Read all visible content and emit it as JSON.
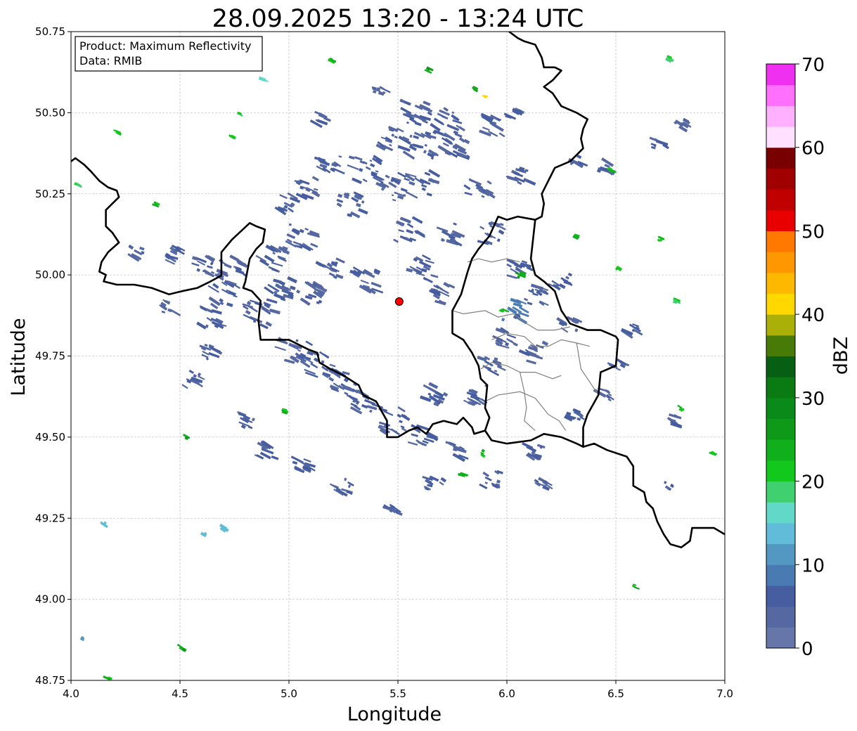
{
  "chart_data": {
    "type": "heatmap",
    "title": "28.09.2025 13:20 - 13:24 UTC",
    "xlabel": "Longitude",
    "ylabel": "Latitude",
    "xlim": [
      4.0,
      7.0
    ],
    "ylim": [
      48.75,
      50.75
    ],
    "xticks": [
      "4.0",
      "4.5",
      "5.0",
      "5.5",
      "6.0",
      "6.5",
      "7.0"
    ],
    "yticks": [
      "48.75",
      "49.00",
      "49.25",
      "49.50",
      "49.75",
      "50.00",
      "50.25",
      "50.50",
      "50.75"
    ],
    "grid": true,
    "info_box": {
      "product": "Product: Maximum Reflectivity",
      "data": "Data: RMIB",
      "placement": "top-left"
    },
    "colorbar": {
      "label": "dBZ",
      "range": [
        0,
        70
      ],
      "step": 2.5,
      "ticks": [
        "0",
        "10",
        "20",
        "30",
        "40",
        "50",
        "60",
        "70"
      ],
      "colors": [
        "#6676a8",
        "#5668a2",
        "#465ea0",
        "#4a7ab2",
        "#5298c2",
        "#60bcd8",
        "#62d8c8",
        "#40d070",
        "#12c81c",
        "#10b01c",
        "#0e9a18",
        "#0a8a18",
        "#0a7a12",
        "#065f12",
        "#487a08",
        "#aab008",
        "#ffd800",
        "#ffb800",
        "#ff9800",
        "#ff7800",
        "#e80000",
        "#c00000",
        "#a00000",
        "#780000",
        "#ffe0ff",
        "#ffb0ff",
        "#ff70ff",
        "#f030f0"
      ]
    },
    "radar_site": {
      "lon": 5.506,
      "lat": 49.918,
      "color": "#ff0000"
    },
    "echo_clusters_note_fields": [
      "lon",
      "lat",
      "dBZ",
      "spread_deg"
    ],
    "echo_clusters": [
      [
        5.58,
        50.5,
        5,
        0.07
      ],
      [
        5.74,
        50.47,
        5,
        0.07
      ],
      [
        5.93,
        50.46,
        5,
        0.05
      ],
      [
        6.03,
        50.5,
        5,
        0.03
      ],
      [
        5.48,
        50.42,
        5,
        0.06
      ],
      [
        5.61,
        50.4,
        5,
        0.07
      ],
      [
        5.77,
        50.4,
        5,
        0.06
      ],
      [
        5.35,
        50.33,
        5,
        0.07
      ],
      [
        5.48,
        50.27,
        5,
        0.07
      ],
      [
        5.61,
        50.28,
        5,
        0.06
      ],
      [
        5.87,
        50.26,
        5,
        0.06
      ],
      [
        6.06,
        50.3,
        5,
        0.05
      ],
      [
        5.19,
        50.35,
        5,
        0.05
      ],
      [
        5.09,
        50.27,
        5,
        0.05
      ],
      [
        4.99,
        50.22,
        5,
        0.04
      ],
      [
        5.28,
        50.22,
        5,
        0.06
      ],
      [
        5.55,
        50.14,
        5,
        0.06
      ],
      [
        5.74,
        50.13,
        5,
        0.05
      ],
      [
        5.93,
        50.13,
        5,
        0.05
      ],
      [
        5.06,
        50.12,
        5,
        0.06
      ],
      [
        4.93,
        50.05,
        5,
        0.06
      ],
      [
        4.74,
        50.02,
        5,
        0.06
      ],
      [
        4.61,
        50.03,
        5,
        0.05
      ],
      [
        4.48,
        50.06,
        5,
        0.04
      ],
      [
        4.71,
        49.94,
        5,
        0.06
      ],
      [
        4.64,
        49.87,
        5,
        0.05
      ],
      [
        4.87,
        49.88,
        5,
        0.07
      ],
      [
        4.96,
        49.96,
        5,
        0.06
      ],
      [
        5.09,
        49.94,
        5,
        0.06
      ],
      [
        5.19,
        50.02,
        5,
        0.05
      ],
      [
        5.35,
        49.98,
        5,
        0.06
      ],
      [
        5.61,
        50.02,
        5,
        0.06
      ],
      [
        5.71,
        49.94,
        5,
        0.05
      ],
      [
        5.03,
        49.76,
        5,
        0.07
      ],
      [
        5.16,
        49.72,
        5,
        0.07
      ],
      [
        5.25,
        49.67,
        5,
        0.06
      ],
      [
        5.35,
        49.61,
        5,
        0.06
      ],
      [
        5.48,
        49.55,
        5,
        0.06
      ],
      [
        5.61,
        49.5,
        5,
        0.05
      ],
      [
        5.77,
        49.46,
        5,
        0.04
      ],
      [
        5.67,
        49.63,
        5,
        0.05
      ],
      [
        5.87,
        49.63,
        5,
        0.05
      ],
      [
        5.93,
        49.72,
        5,
        0.05
      ],
      [
        6.0,
        49.81,
        5,
        0.05
      ],
      [
        6.03,
        49.89,
        8,
        0.05
      ],
      [
        6.06,
        50.02,
        5,
        0.05
      ],
      [
        6.13,
        49.94,
        5,
        0.05
      ],
      [
        6.25,
        49.98,
        5,
        0.04
      ],
      [
        6.29,
        49.85,
        5,
        0.04
      ],
      [
        6.13,
        49.76,
        5,
        0.05
      ],
      [
        4.56,
        49.68,
        5,
        0.04
      ],
      [
        4.64,
        49.76,
        5,
        0.04
      ],
      [
        4.8,
        49.55,
        5,
        0.04
      ],
      [
        4.9,
        49.46,
        5,
        0.04
      ],
      [
        5.06,
        49.42,
        5,
        0.04
      ],
      [
        5.25,
        49.35,
        5,
        0.04
      ],
      [
        5.48,
        49.27,
        5,
        0.03
      ],
      [
        5.67,
        49.35,
        5,
        0.04
      ],
      [
        5.93,
        49.37,
        5,
        0.04
      ],
      [
        6.16,
        49.35,
        5,
        0.03
      ],
      [
        6.13,
        49.46,
        5,
        0.04
      ],
      [
        6.32,
        49.57,
        5,
        0.04
      ],
      [
        6.45,
        49.63,
        5,
        0.03
      ],
      [
        6.51,
        49.72,
        5,
        0.03
      ],
      [
        6.58,
        49.83,
        5,
        0.03
      ],
      [
        6.77,
        49.55,
        5,
        0.03
      ],
      [
        6.74,
        49.35,
        5,
        0.02
      ],
      [
        6.8,
        50.46,
        5,
        0.03
      ],
      [
        6.7,
        50.41,
        5,
        0.03
      ],
      [
        6.45,
        50.33,
        5,
        0.03
      ],
      [
        6.32,
        50.35,
        5,
        0.03
      ],
      [
        4.3,
        50.07,
        5,
        0.03
      ],
      [
        4.45,
        49.9,
        5,
        0.03
      ],
      [
        5.42,
        50.56,
        5,
        0.03
      ],
      [
        5.15,
        50.48,
        5,
        0.03
      ],
      [
        4.21,
        50.44,
        22,
        0.01
      ],
      [
        4.39,
        50.22,
        22,
        0.01
      ],
      [
        4.74,
        50.43,
        22,
        0.01
      ],
      [
        4.77,
        50.5,
        20,
        0.01
      ],
      [
        5.2,
        50.66,
        22,
        0.01
      ],
      [
        5.64,
        50.63,
        24,
        0.01
      ],
      [
        5.86,
        50.57,
        24,
        0.01
      ],
      [
        6.74,
        50.67,
        20,
        0.015
      ],
      [
        6.48,
        50.32,
        22,
        0.015
      ],
      [
        6.32,
        50.12,
        22,
        0.01
      ],
      [
        6.51,
        50.02,
        22,
        0.01
      ],
      [
        6.7,
        50.11,
        22,
        0.01
      ],
      [
        6.78,
        49.92,
        20,
        0.01
      ],
      [
        6.06,
        50.0,
        24,
        0.015
      ],
      [
        5.99,
        49.89,
        22,
        0.015
      ],
      [
        4.99,
        49.58,
        22,
        0.01
      ],
      [
        4.53,
        49.5,
        24,
        0.005
      ],
      [
        5.8,
        49.38,
        22,
        0.01
      ],
      [
        5.9,
        49.45,
        22,
        0.015
      ],
      [
        6.59,
        49.04,
        24,
        0.01
      ],
      [
        4.51,
        48.85,
        24,
        0.01
      ],
      [
        4.17,
        48.76,
        22,
        0.01
      ],
      [
        6.8,
        49.59,
        22,
        0.01
      ],
      [
        6.94,
        49.45,
        22,
        0.01
      ],
      [
        4.03,
        50.28,
        20,
        0.01
      ],
      [
        4.88,
        50.6,
        17,
        0.01
      ],
      [
        4.15,
        49.23,
        15,
        0.01
      ],
      [
        4.7,
        49.22,
        15,
        0.01
      ],
      [
        4.61,
        49.2,
        12,
        0.008
      ],
      [
        4.05,
        48.88,
        12,
        0.005
      ],
      [
        5.9,
        50.55,
        40,
        0.005
      ]
    ],
    "borders": [
      [
        [
          4.0,
          50.35
        ],
        [
          4.02,
          50.36
        ],
        [
          4.06,
          50.34
        ],
        [
          4.09,
          50.32
        ],
        [
          4.13,
          50.29
        ],
        [
          4.15,
          50.28
        ],
        [
          4.17,
          50.27
        ],
        [
          4.21,
          50.26
        ],
        [
          4.22,
          50.24
        ],
        [
          4.19,
          50.22
        ],
        [
          4.16,
          50.2
        ],
        [
          4.16,
          50.15
        ],
        [
          4.19,
          50.13
        ],
        [
          4.22,
          50.1
        ],
        [
          4.17,
          50.07
        ],
        [
          4.14,
          50.04
        ],
        [
          4.13,
          50.01
        ],
        [
          4.16,
          50.0
        ],
        [
          4.15,
          49.98
        ],
        [
          4.21,
          49.97
        ],
        [
          4.29,
          49.97
        ],
        [
          4.37,
          49.96
        ],
        [
          4.45,
          49.94
        ],
        [
          4.51,
          49.95
        ],
        [
          4.58,
          49.96
        ],
        [
          4.64,
          49.98
        ],
        [
          4.69,
          49.998
        ],
        [
          4.69,
          50.07
        ],
        [
          4.74,
          50.11
        ],
        [
          4.82,
          50.16
        ],
        [
          4.85,
          50.15
        ],
        [
          4.89,
          50.14
        ],
        [
          4.88,
          50.1
        ],
        [
          4.85,
          50.08
        ],
        [
          4.82,
          50.05
        ],
        [
          4.8,
          49.98
        ],
        [
          4.79,
          49.96
        ],
        [
          4.83,
          49.95
        ],
        [
          4.87,
          49.92
        ],
        [
          4.86,
          49.86
        ],
        [
          4.87,
          49.8
        ],
        [
          4.95,
          49.8
        ],
        [
          5.0,
          49.8
        ],
        [
          5.06,
          49.78
        ],
        [
          5.09,
          49.77
        ],
        [
          5.13,
          49.76
        ],
        [
          5.14,
          49.73
        ],
        [
          5.19,
          49.71
        ],
        [
          5.25,
          49.69
        ],
        [
          5.32,
          49.66
        ],
        [
          5.34,
          49.63
        ],
        [
          5.4,
          49.61
        ],
        [
          5.45,
          49.55
        ],
        [
          5.45,
          49.5
        ],
        [
          5.5,
          49.5
        ],
        [
          5.55,
          49.52
        ],
        [
          5.59,
          49.53
        ],
        [
          5.63,
          49.51
        ],
        [
          5.66,
          49.54
        ],
        [
          5.71,
          49.55
        ],
        [
          5.77,
          49.54
        ],
        [
          5.8,
          49.56
        ],
        [
          5.84,
          49.53
        ],
        [
          5.85,
          49.51
        ],
        [
          5.9,
          49.52
        ]
      ],
      [
        [
          5.9,
          49.52
        ],
        [
          5.92,
          49.56
        ],
        [
          5.9,
          49.59
        ],
        [
          5.91,
          49.66
        ],
        [
          5.88,
          49.68
        ],
        [
          5.87,
          49.72
        ],
        [
          5.84,
          49.76
        ],
        [
          5.8,
          49.8
        ],
        [
          5.75,
          49.82
        ],
        [
          5.75,
          49.89
        ],
        [
          5.79,
          49.94
        ],
        [
          5.82,
          50.01
        ],
        [
          5.84,
          50.05
        ],
        [
          5.87,
          50.08
        ],
        [
          5.92,
          50.12
        ],
        [
          5.96,
          50.18
        ],
        [
          6.0,
          50.17
        ],
        [
          6.05,
          50.18
        ],
        [
          6.13,
          50.17
        ],
        [
          6.16,
          50.18
        ],
        [
          6.17,
          50.22
        ],
        [
          6.16,
          50.25
        ],
        [
          6.19,
          50.29
        ],
        [
          6.22,
          50.33
        ],
        [
          6.29,
          50.35
        ],
        [
          6.32,
          50.37
        ],
        [
          6.35,
          50.39
        ],
        [
          6.34,
          50.42
        ],
        [
          6.35,
          50.45
        ],
        [
          6.37,
          50.48
        ],
        [
          6.32,
          50.5
        ],
        [
          6.25,
          50.52
        ],
        [
          6.21,
          50.56
        ],
        [
          6.17,
          50.58
        ],
        [
          6.21,
          50.6
        ],
        [
          6.25,
          50.63
        ],
        [
          6.22,
          50.64
        ],
        [
          6.17,
          50.64
        ],
        [
          6.16,
          50.67
        ],
        [
          6.13,
          50.71
        ],
        [
          6.08,
          50.72
        ],
        [
          6.05,
          50.73
        ],
        [
          6.01,
          50.75
        ]
      ],
      [
        [
          6.13,
          50.17
        ],
        [
          6.12,
          50.11
        ],
        [
          6.11,
          50.05
        ],
        [
          6.13,
          50.0
        ],
        [
          6.17,
          49.98
        ],
        [
          6.22,
          49.95
        ],
        [
          6.25,
          49.89
        ],
        [
          6.29,
          49.85
        ],
        [
          6.37,
          49.83
        ],
        [
          6.43,
          49.83
        ],
        [
          6.5,
          49.81
        ],
        [
          6.51,
          49.8
        ],
        [
          6.5,
          49.72
        ],
        [
          6.43,
          49.7
        ],
        [
          6.42,
          49.63
        ],
        [
          6.37,
          49.57
        ],
        [
          6.35,
          49.53
        ],
        [
          6.35,
          49.47
        ],
        [
          6.32,
          49.48
        ],
        [
          6.25,
          49.5
        ],
        [
          6.17,
          49.51
        ],
        [
          6.11,
          49.49
        ],
        [
          6.0,
          49.48
        ],
        [
          5.93,
          49.49
        ],
        [
          5.9,
          49.52
        ]
      ],
      [
        [
          6.35,
          49.47
        ],
        [
          6.4,
          49.48
        ],
        [
          6.46,
          49.46
        ],
        [
          6.55,
          49.44
        ],
        [
          6.58,
          49.41
        ],
        [
          6.58,
          49.35
        ],
        [
          6.63,
          49.33
        ],
        [
          6.64,
          49.3
        ],
        [
          6.67,
          49.28
        ],
        [
          6.69,
          49.24
        ],
        [
          6.72,
          49.2
        ],
        [
          6.75,
          49.17
        ],
        [
          6.8,
          49.16
        ],
        [
          6.84,
          49.18
        ],
        [
          6.85,
          49.22
        ],
        [
          6.9,
          49.22
        ],
        [
          6.95,
          49.22
        ],
        [
          7.0,
          49.2
        ]
      ]
    ],
    "admin_lines": [
      [
        [
          5.75,
          49.89
        ],
        [
          5.8,
          49.88
        ],
        [
          5.9,
          49.89
        ],
        [
          5.96,
          49.87
        ],
        [
          6.03,
          49.88
        ],
        [
          6.09,
          49.85
        ],
        [
          6.14,
          49.83
        ],
        [
          6.22,
          49.83
        ],
        [
          6.29,
          49.84
        ]
      ],
      [
        [
          5.93,
          49.8
        ],
        [
          6.0,
          49.82
        ],
        [
          6.08,
          49.81
        ],
        [
          6.13,
          49.78
        ],
        [
          6.19,
          49.78
        ],
        [
          6.25,
          49.8
        ],
        [
          6.32,
          49.79
        ],
        [
          6.38,
          49.78
        ]
      ],
      [
        [
          5.88,
          49.71
        ],
        [
          5.93,
          49.73
        ],
        [
          6.0,
          49.72
        ],
        [
          6.06,
          49.7
        ],
        [
          6.13,
          49.7
        ],
        [
          6.21,
          49.68
        ],
        [
          6.25,
          49.69
        ]
      ],
      [
        [
          5.9,
          49.61
        ],
        [
          5.96,
          49.63
        ],
        [
          6.06,
          49.64
        ],
        [
          6.13,
          49.62
        ],
        [
          6.19,
          49.57
        ],
        [
          6.24,
          49.55
        ],
        [
          6.27,
          49.52
        ]
      ],
      [
        [
          6.06,
          49.7
        ],
        [
          6.08,
          49.64
        ],
        [
          6.09,
          49.59
        ],
        [
          6.08,
          49.55
        ],
        [
          6.13,
          49.52
        ]
      ],
      [
        [
          6.32,
          49.79
        ],
        [
          6.34,
          49.71
        ],
        [
          6.38,
          49.67
        ],
        [
          6.42,
          49.63
        ]
      ],
      [
        [
          5.82,
          50.04
        ],
        [
          5.87,
          50.05
        ],
        [
          5.93,
          50.04
        ],
        [
          6.0,
          50.05
        ],
        [
          6.06,
          50.04
        ]
      ]
    ]
  }
}
